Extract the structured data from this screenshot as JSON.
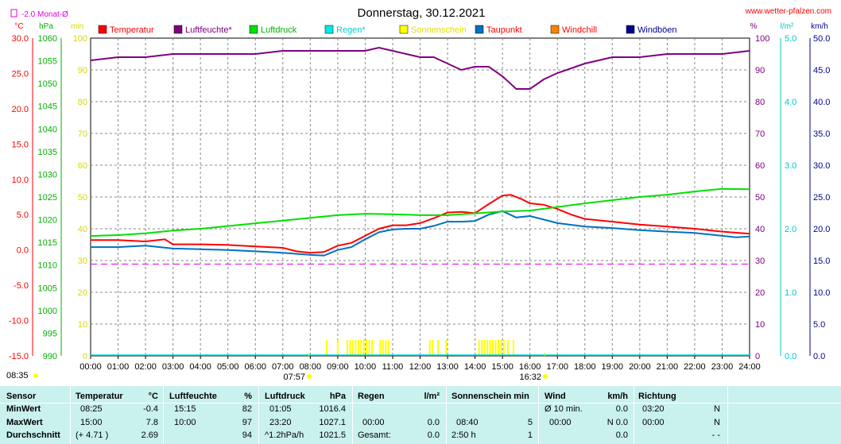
{
  "header": {
    "title": "Donnerstag, 30.12.2021",
    "website": "www.wetter-pfalzen.com",
    "monthly_avg": "-2.0 Monat-Ø"
  },
  "colors": {
    "temperature": "#ff0000",
    "humidity": "#800080",
    "pressure": "#00e000",
    "rain": "#00e8e8",
    "sunshine": "#ffff00",
    "dewpoint": "#0070c0",
    "windchill": "#ff8000",
    "gusts": "#000090",
    "monthly_avg": "#e000e0"
  },
  "chart_data": {
    "type": "line",
    "x_unit": "hours",
    "x_ticks": [
      "00:00",
      "01:00",
      "02:00",
      "03:00",
      "04:00",
      "05:00",
      "06:00",
      "07:00",
      "08:00",
      "09:00",
      "10:00",
      "11:00",
      "12:00",
      "13:00",
      "14:00",
      "15:00",
      "16:00",
      "17:00",
      "18:00",
      "19:00",
      "20:00",
      "21:00",
      "22:00",
      "23:00",
      "24:00"
    ],
    "axes": {
      "temperature": {
        "unit": "°C",
        "range": [
          -15,
          30
        ],
        "ticks": [
          "30.0",
          "25.0",
          "20.0",
          "15.0",
          "10.0",
          "5.0",
          "0.0",
          "-5.0",
          "-10.0",
          "-15.0"
        ]
      },
      "pressure": {
        "unit": "hPa",
        "range": [
          990,
          1060
        ],
        "ticks": [
          "1060",
          "1055",
          "1050",
          "1045",
          "1040",
          "1035",
          "1030",
          "1025",
          "1020",
          "1015",
          "1010",
          "1005",
          "1000",
          "995",
          "990"
        ]
      },
      "sun_minutes": {
        "unit": "min",
        "range": [
          0,
          100
        ],
        "ticks": [
          "100",
          "90",
          "80",
          "70",
          "60",
          "50",
          "40",
          "30",
          "20",
          "10",
          "0"
        ]
      },
      "humidity": {
        "unit": "%",
        "range": [
          0,
          100
        ],
        "ticks": [
          "100",
          "90",
          "80",
          "70",
          "60",
          "50",
          "40",
          "30",
          "20",
          "10",
          "0"
        ]
      },
      "rain": {
        "unit": "l/m²",
        "range": [
          0,
          5
        ],
        "ticks": [
          "5.0",
          "4.0",
          "3.0",
          "2.0",
          "1.0",
          "0.0"
        ]
      },
      "wind": {
        "unit": "km/h",
        "range": [
          0,
          50
        ],
        "ticks": [
          "50.0",
          "45.0",
          "40.0",
          "35.0",
          "30.0",
          "25.0",
          "20.0",
          "15.0",
          "10.0",
          "5.0",
          "0.0"
        ]
      }
    },
    "legend": [
      "Temperatur",
      "Luftfeuchte*",
      "Luftdruck",
      "Regen*",
      "Sonnenschein",
      "Taupunkt",
      "Windchill",
      "Windböen"
    ],
    "monthly_avg_temperature": -2.0,
    "markers": {
      "sunrise": "08:35",
      "sunrise_label": "07:57",
      "sunset_label": "16:32"
    },
    "series": [
      {
        "name": "Temperatur",
        "axis": "temperature",
        "x": [
          0,
          1,
          2,
          2.7,
          3,
          4,
          5,
          6,
          7,
          7.5,
          8,
          8.5,
          9,
          9.5,
          10,
          10.5,
          11,
          11.5,
          12,
          12.5,
          13,
          13.5,
          14,
          14.5,
          15,
          15.3,
          15.7,
          16,
          16.5,
          17,
          17.5,
          18,
          19,
          20,
          21,
          22,
          23,
          24
        ],
        "y": [
          1.4,
          1.4,
          1.2,
          1.5,
          0.8,
          0.8,
          0.7,
          0.5,
          0.3,
          -0.2,
          -0.4,
          -0.3,
          0.6,
          1.0,
          2.0,
          3.0,
          3.5,
          3.5,
          3.8,
          4.5,
          5.3,
          5.4,
          5.2,
          6.5,
          7.7,
          7.8,
          7.2,
          6.6,
          6.4,
          5.8,
          5.0,
          4.4,
          4.0,
          3.6,
          3.3,
          3.0,
          2.6,
          2.3
        ]
      },
      {
        "name": "Taupunkt",
        "axis": "temperature",
        "x": [
          0,
          1,
          2,
          3,
          4,
          5,
          6,
          7,
          8,
          8.5,
          9,
          9.5,
          10,
          10.5,
          11,
          11.5,
          12,
          12.5,
          13,
          13.5,
          14,
          14.5,
          15,
          15.5,
          16,
          16.5,
          17,
          18,
          19,
          20,
          21,
          22,
          23,
          23.5,
          24
        ],
        "y": [
          0.4,
          0.4,
          0.6,
          0.2,
          0.1,
          0.0,
          -0.2,
          -0.4,
          -0.7,
          -0.8,
          0.0,
          0.4,
          1.5,
          2.5,
          2.9,
          3.0,
          3.0,
          3.4,
          4.0,
          4.0,
          4.1,
          5.0,
          5.5,
          4.6,
          4.8,
          4.3,
          3.8,
          3.3,
          3.1,
          2.8,
          2.6,
          2.4,
          2.0,
          1.8,
          1.9
        ]
      },
      {
        "name": "Luftfeuchte*",
        "axis": "humidity",
        "x": [
          0,
          1,
          2,
          3,
          4,
          5,
          6,
          7,
          8,
          9,
          10,
          10.5,
          11,
          11.5,
          12,
          12.5,
          13,
          13.5,
          14,
          14.5,
          15,
          15.5,
          16,
          16.5,
          17,
          18,
          19,
          20,
          21,
          22,
          23,
          24
        ],
        "y": [
          93,
          94,
          94,
          95,
          95,
          95,
          95,
          96,
          96,
          96,
          96,
          97,
          96,
          95,
          94,
          94,
          92,
          90,
          91,
          91,
          88,
          84,
          84,
          87,
          89,
          92,
          94,
          94,
          95,
          95,
          95,
          96
        ]
      },
      {
        "name": "Luftdruck",
        "axis": "pressure",
        "x": [
          0,
          1,
          2,
          3,
          4,
          5,
          6,
          7,
          8,
          9,
          10,
          11,
          12,
          13,
          14,
          15,
          16,
          17,
          18,
          19,
          20,
          21,
          22,
          23,
          24
        ],
        "y": [
          1016.4,
          1016.6,
          1017.0,
          1017.6,
          1018.0,
          1018.6,
          1019.2,
          1019.8,
          1020.4,
          1021.0,
          1021.3,
          1021.2,
          1021.0,
          1021.0,
          1021.4,
          1021.8,
          1022.0,
          1022.8,
          1023.6,
          1024.3,
          1025.0,
          1025.5,
          1026.2,
          1026.8,
          1026.7
        ]
      }
    ],
    "sunshine_bars": [
      8.6,
      9.0,
      9.35,
      9.45,
      9.55,
      9.65,
      9.75,
      9.85,
      9.95,
      10.05,
      10.15,
      10.25,
      10.55,
      10.65,
      10.75,
      10.85,
      12.35,
      12.45,
      12.65,
      12.95,
      14.15,
      14.25,
      14.35,
      14.45,
      14.55,
      14.65,
      14.75,
      14.85,
      14.95,
      15.05,
      15.2,
      15.4
    ]
  },
  "table": {
    "sensor": {
      "title": "Sensor",
      "rows": [
        "MinWert",
        "MaxWert",
        "Durchschnitt"
      ]
    },
    "temperature": {
      "title": "Temperatur",
      "unit": "°C",
      "times": [
        "08:25",
        "15:00",
        "(+ 4.71 )"
      ],
      "values": [
        "-0.4",
        "7.8",
        "2.69"
      ]
    },
    "humidity": {
      "title": "Luftfeuchte",
      "unit": "%",
      "times": [
        "15:15",
        "10:00",
        ""
      ],
      "values": [
        "82",
        "97",
        "94"
      ]
    },
    "pressure": {
      "title": "Luftdruck",
      "unit": "hPa",
      "times": [
        "01:05",
        "23:20",
        "^1.2hPa/h"
      ],
      "values": [
        "1016.4",
        "1027.1",
        "1021.5"
      ]
    },
    "rain": {
      "title": "Regen",
      "unit": "l/m²",
      "times": [
        "",
        "00:00",
        "Gesamt:"
      ],
      "values": [
        "",
        "0.0",
        "0.0"
      ]
    },
    "sunshine": {
      "title": "Sonnenschein min",
      "times": [
        "",
        "08:40",
        "2:50 h"
      ],
      "values": [
        "",
        "5",
        "1"
      ]
    },
    "wind": {
      "title": "Wind",
      "unit": "km/h",
      "times": [
        "Ø 10 min.",
        "00:00",
        ""
      ],
      "values": [
        "0.0",
        "N 0.0",
        "0.0"
      ]
    },
    "direction": {
      "title": "Richtung",
      "times": [
        "03:20",
        "00:00",
        ""
      ],
      "values": [
        "N",
        "N",
        "- -"
      ]
    }
  }
}
